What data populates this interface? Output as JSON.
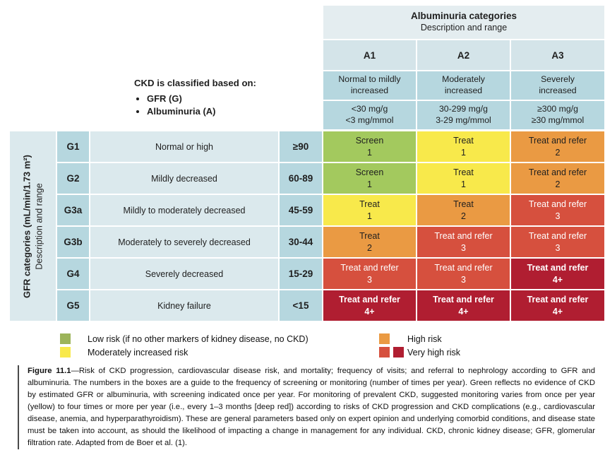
{
  "albuminuria_header": {
    "title": "Albuminuria categories",
    "subtitle": "Description and range"
  },
  "ckd_note": {
    "title": "CKD is classified based on:",
    "bullets": [
      "GFR (G)",
      "Albuminuria (A)"
    ]
  },
  "gfr_axis": {
    "title": "GFR categories (mL/min/1.73 m²)",
    "subtitle": "Description and range"
  },
  "albuminuria_columns": [
    {
      "id": "A1",
      "description": "Normal to mildly\nincreased",
      "range": "<30 mg/g\n<3 mg/mmol"
    },
    {
      "id": "A2",
      "description": "Moderately\nincreased",
      "range": "30-299 mg/g\n3-29 mg/mmol"
    },
    {
      "id": "A3",
      "description": "Severely\nincreased",
      "range": "≥300 mg/g\n≥30 mg/mmol"
    }
  ],
  "chart_data": {
    "type": "heatmap",
    "title": "Risk of CKD progression, frequency of visits, and referral to nephrology by GFR and albuminuria categories",
    "x_categories": [
      "A1",
      "A2",
      "A3"
    ],
    "y_categories": [
      "G1",
      "G2",
      "G3a",
      "G3b",
      "G4",
      "G5"
    ],
    "legend_position": "bottom",
    "rows": [
      {
        "g": "G1",
        "description": "Normal or high",
        "gfr_range": "≥90",
        "cells": [
          {
            "action": "Screen",
            "frequency": "1",
            "risk": "low"
          },
          {
            "action": "Treat",
            "frequency": "1",
            "risk": "moderate"
          },
          {
            "action": "Treat and refer",
            "frequency": "2",
            "risk": "high"
          }
        ]
      },
      {
        "g": "G2",
        "description": "Mildly decreased",
        "gfr_range": "60-89",
        "cells": [
          {
            "action": "Screen",
            "frequency": "1",
            "risk": "low"
          },
          {
            "action": "Treat",
            "frequency": "1",
            "risk": "moderate"
          },
          {
            "action": "Treat and refer",
            "frequency": "2",
            "risk": "high"
          }
        ]
      },
      {
        "g": "G3a",
        "description": "Mildly to moderately decreased",
        "gfr_range": "45-59",
        "cells": [
          {
            "action": "Treat",
            "frequency": "1",
            "risk": "moderate"
          },
          {
            "action": "Treat",
            "frequency": "2",
            "risk": "high"
          },
          {
            "action": "Treat and refer",
            "frequency": "3",
            "risk": "very-high"
          }
        ]
      },
      {
        "g": "G3b",
        "description": "Moderately to severely decreased",
        "gfr_range": "30-44",
        "cells": [
          {
            "action": "Treat",
            "frequency": "2",
            "risk": "high"
          },
          {
            "action": "Treat and refer",
            "frequency": "3",
            "risk": "very-high"
          },
          {
            "action": "Treat and refer",
            "frequency": "3",
            "risk": "very-high"
          }
        ]
      },
      {
        "g": "G4",
        "description": "Severely decreased",
        "gfr_range": "15-29",
        "cells": [
          {
            "action": "Treat and refer",
            "frequency": "3",
            "risk": "very-high"
          },
          {
            "action": "Treat and refer",
            "frequency": "3",
            "risk": "very-high"
          },
          {
            "action": "Treat and refer",
            "frequency": "4+",
            "risk": "very-high-deep"
          }
        ]
      },
      {
        "g": "G5",
        "description": "Kidney failure",
        "gfr_range": "<15",
        "cells": [
          {
            "action": "Treat and refer",
            "frequency": "4+",
            "risk": "very-high-deep"
          },
          {
            "action": "Treat and refer",
            "frequency": "4+",
            "risk": "very-high-deep"
          },
          {
            "action": "Treat and refer",
            "frequency": "4+",
            "risk": "very-high-deep"
          }
        ]
      }
    ]
  },
  "legend": {
    "left": [
      {
        "risk": "low",
        "label": "Low risk (if no other markers of kidney disease, no CKD)"
      },
      {
        "risk": "moderate",
        "label": "Moderately increased risk"
      }
    ],
    "right": [
      {
        "swatches": [
          "high"
        ],
        "label": "High risk"
      },
      {
        "swatches": [
          "very-high",
          "very-high-deep"
        ],
        "label": "Very high risk"
      }
    ]
  },
  "caption": {
    "label": "Figure 11.1",
    "text": "—Risk of CKD progression, cardiovascular disease risk, and mortality; frequency of visits; and referral to nephrology according to GFR and albuminuria. The numbers in the boxes are a guide to the frequency of screening or monitoring (number of times per year). Green reflects no evidence of CKD by estimated GFR or albuminuria, with screening indicated once per year. For monitoring of prevalent CKD, suggested monitoring varies from once per year (yellow) to four times or more per year (i.e., every 1–3 months [deep red]) according to risks of CKD progression and CKD complications (e.g., cardiovascular disease, anemia, and hyperparathyroidism). These are general parameters based only on expert opinion and underlying comorbid conditions, and disease state must be taken into account, as should the likelihood of impacting a change in management for any individual. CKD, chronic kidney disease; GFR, glomerular filtration rate. Adapted from de Boer et al. (1)."
  },
  "colors": {
    "low": "#a3c95e",
    "legend_low": "#9cb45a",
    "moderate": "#f8e94b",
    "high": "#ea9a43",
    "very_high": "#d6503e",
    "very_high_deep": "#b01e31",
    "header_light": "#e4edf0",
    "cell_light": "#d4e4e9",
    "cell_medium": "#b6d7df",
    "table_light": "#dbe9ed"
  }
}
